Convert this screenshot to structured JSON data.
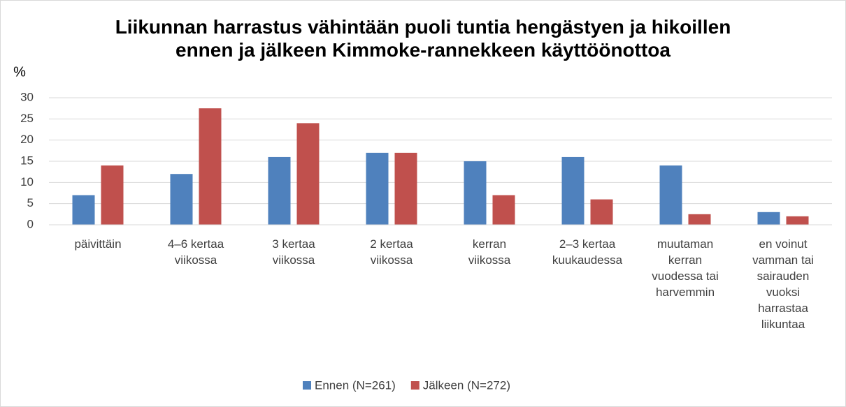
{
  "chart_data": {
    "type": "bar",
    "title": "Liikunnan harrastus vähintään puoli tuntia hengästyen ja hikoillen ennen ja jälkeen Kimmoke-rannekkeen käyttöönottoa",
    "y_label": "%",
    "categories": [
      "päivittäin",
      "4–6 kertaa viikossa",
      "3 kertaa viikossa",
      "2 kertaa viikossa",
      "kerran viikossa",
      "2–3 kertaa kuukaudessa",
      "muutaman kerran vuodessa tai harvemmin",
      "en voinut vamman tai sairauden vuoksi harrastaa liikuntaa"
    ],
    "series": [
      {
        "name": "Ennen (N=261)",
        "color": "#4f81bd",
        "values": [
          7,
          12,
          16,
          17,
          15,
          16,
          14,
          3
        ]
      },
      {
        "name": "Jälkeen (N=272)",
        "color": "#c0504d",
        "values": [
          14,
          27.5,
          24,
          17,
          7,
          6,
          2.5,
          2
        ]
      }
    ],
    "ylim": [
      0,
      30
    ],
    "yticks": [
      0,
      5,
      10,
      15,
      20,
      25,
      30
    ],
    "grid": true,
    "legend": "bottom"
  }
}
